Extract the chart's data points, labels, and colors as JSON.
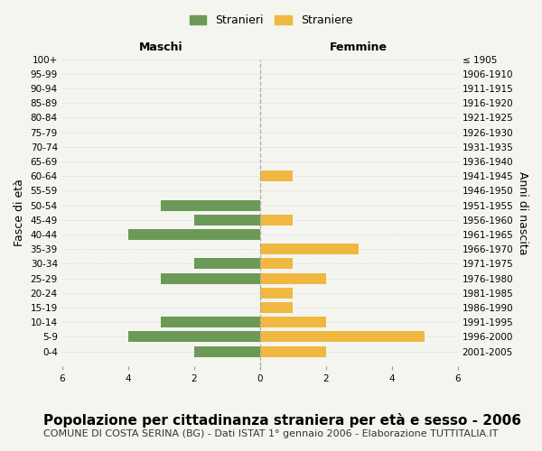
{
  "age_groups": [
    "100+",
    "95-99",
    "90-94",
    "85-89",
    "80-84",
    "75-79",
    "70-74",
    "65-69",
    "60-64",
    "55-59",
    "50-54",
    "45-49",
    "40-44",
    "35-39",
    "30-34",
    "25-29",
    "20-24",
    "15-19",
    "10-14",
    "5-9",
    "0-4"
  ],
  "birth_years": [
    "≤ 1905",
    "1906-1910",
    "1911-1915",
    "1916-1920",
    "1921-1925",
    "1926-1930",
    "1931-1935",
    "1936-1940",
    "1941-1945",
    "1946-1950",
    "1951-1955",
    "1956-1960",
    "1961-1965",
    "1966-1970",
    "1971-1975",
    "1976-1980",
    "1981-1985",
    "1986-1990",
    "1991-1995",
    "1996-2000",
    "2001-2005"
  ],
  "maschi": [
    0,
    0,
    0,
    0,
    0,
    0,
    0,
    0,
    0,
    0,
    3,
    2,
    4,
    0,
    2,
    3,
    0,
    0,
    3,
    4,
    2
  ],
  "femmine": [
    0,
    0,
    0,
    0,
    0,
    0,
    0,
    0,
    1,
    0,
    0,
    1,
    0,
    3,
    1,
    2,
    1,
    1,
    2,
    5,
    2
  ],
  "color_maschi": "#6b9a56",
  "color_femmine": "#f0b840",
  "xlim": 6,
  "title": "Popolazione per cittadinanza straniera per età e sesso - 2006",
  "subtitle": "COMUNE DI COSTA SERINA (BG) - Dati ISTAT 1° gennaio 2006 - Elaborazione TUTTITALIA.IT",
  "label_maschi": "Stranieri",
  "label_femmine": "Straniere",
  "xlabel_left": "Maschi",
  "xlabel_right": "Femmine",
  "ylabel_left": "Fasce di età",
  "ylabel_right": "Anni di nascita",
  "bg_color": "#f5f5f0",
  "grid_color": "#cccccc",
  "title_fontsize": 11,
  "subtitle_fontsize": 8,
  "tick_fontsize": 7.5,
  "label_fontsize": 9
}
